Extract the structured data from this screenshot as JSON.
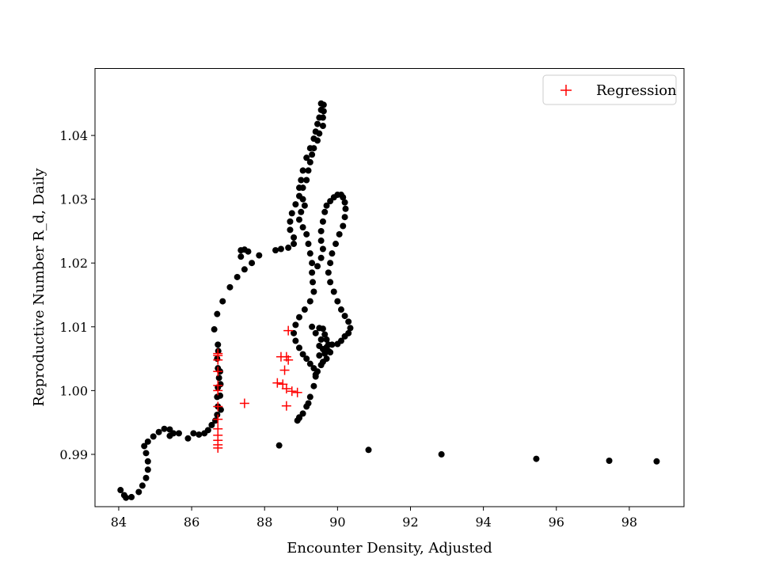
{
  "chart_data": {
    "type": "scatter",
    "xlabel": "Encounter Density, Adjusted",
    "ylabel": "Reproductive Number R_d, Daily",
    "xlim": [
      83.35,
      99.5
    ],
    "ylim": [
      0.9818,
      1.0505
    ],
    "xticks": [
      84,
      86,
      88,
      90,
      92,
      94,
      96,
      98
    ],
    "yticks": [
      0.99,
      1.0,
      1.01,
      1.02,
      1.03,
      1.04
    ],
    "ytick_labels": [
      "0.99",
      "1.00",
      "1.01",
      "1.02",
      "1.03",
      "1.04"
    ],
    "grid": false,
    "legend": {
      "position": "top-right",
      "entries": [
        "Regression"
      ]
    },
    "series": [
      {
        "marker": "dot",
        "color": "#000000",
        "points": [
          [
            98.75,
            0.9889
          ],
          [
            97.45,
            0.989
          ],
          [
            95.45,
            0.9893
          ],
          [
            92.85,
            0.99
          ],
          [
            90.85,
            0.9907
          ],
          [
            88.4,
            0.9914
          ],
          [
            84.05,
            0.9844
          ],
          [
            84.15,
            0.9836
          ],
          [
            84.2,
            0.9832
          ],
          [
            84.35,
            0.9833
          ],
          [
            84.55,
            0.9841
          ],
          [
            84.65,
            0.9851
          ],
          [
            84.75,
            0.9863
          ],
          [
            84.8,
            0.9876
          ],
          [
            84.8,
            0.9889
          ],
          [
            84.75,
            0.9902
          ],
          [
            84.7,
            0.9913
          ],
          [
            84.8,
            0.992
          ],
          [
            84.95,
            0.9928
          ],
          [
            85.1,
            0.9935
          ],
          [
            85.25,
            0.994
          ],
          [
            85.4,
            0.9939
          ],
          [
            85.5,
            0.9933
          ],
          [
            85.4,
            0.9929
          ],
          [
            85.65,
            0.9933
          ],
          [
            85.9,
            0.9925
          ],
          [
            86.05,
            0.9933
          ],
          [
            86.2,
            0.9931
          ],
          [
            86.35,
            0.9933
          ],
          [
            86.45,
            0.9938
          ],
          [
            86.55,
            0.9946
          ],
          [
            86.65,
            0.9953
          ],
          [
            86.7,
            0.9962
          ],
          [
            86.72,
            0.9975
          ],
          [
            86.7,
            0.999
          ],
          [
            86.72,
            1.0005
          ],
          [
            86.75,
            1.002
          ],
          [
            86.72,
            1.0035
          ],
          [
            86.7,
            1.005
          ],
          [
            86.73,
            1.0062
          ],
          [
            86.72,
            1.0072
          ],
          [
            86.8,
            0.997
          ],
          [
            86.78,
            0.9992
          ],
          [
            86.79,
            1.001
          ],
          [
            86.78,
            1.003
          ],
          [
            86.62,
            1.0096
          ],
          [
            86.7,
            1.012
          ],
          [
            86.85,
            1.014
          ],
          [
            87.05,
            1.0162
          ],
          [
            87.25,
            1.0178
          ],
          [
            87.45,
            1.019
          ],
          [
            87.65,
            1.02
          ],
          [
            87.85,
            1.0212
          ],
          [
            87.55,
            1.0218
          ],
          [
            87.45,
            1.0221
          ],
          [
            87.35,
            1.022
          ],
          [
            87.35,
            1.021
          ],
          [
            88.3,
            1.022
          ],
          [
            88.45,
            1.0222
          ],
          [
            88.65,
            1.0224
          ],
          [
            88.8,
            1.023
          ],
          [
            88.8,
            1.024
          ],
          [
            88.7,
            1.0252
          ],
          [
            88.7,
            1.0265
          ],
          [
            88.75,
            1.0278
          ],
          [
            88.85,
            1.0292
          ],
          [
            88.95,
            1.0305
          ],
          [
            89.05,
            1.0318
          ],
          [
            89.15,
            1.033
          ],
          [
            89.2,
            1.0345
          ],
          [
            89.25,
            1.0358
          ],
          [
            89.3,
            1.037
          ],
          [
            89.35,
            1.038
          ],
          [
            89.45,
            1.0392
          ],
          [
            89.5,
            1.0403
          ],
          [
            89.6,
            1.0415
          ],
          [
            89.6,
            1.0428
          ],
          [
            89.62,
            1.0438
          ],
          [
            89.62,
            1.0448
          ],
          [
            89.55,
            1.045
          ],
          [
            89.55,
            1.044
          ],
          [
            89.5,
            1.0428
          ],
          [
            89.45,
            1.0418
          ],
          [
            89.4,
            1.0406
          ],
          [
            89.35,
            1.0395
          ],
          [
            89.25,
            1.038
          ],
          [
            89.15,
            1.0365
          ],
          [
            89.05,
            1.0345
          ],
          [
            89.0,
            1.033
          ],
          [
            88.95,
            1.0318
          ],
          [
            89.05,
            1.03
          ],
          [
            89.1,
            1.029
          ],
          [
            89.0,
            1.028
          ],
          [
            88.95,
            1.0268
          ],
          [
            89.05,
            1.0256
          ],
          [
            89.15,
            1.0245
          ],
          [
            89.2,
            1.023
          ],
          [
            89.25,
            1.0215
          ],
          [
            89.3,
            1.02
          ],
          [
            89.3,
            1.0185
          ],
          [
            89.32,
            1.017
          ],
          [
            89.35,
            1.0155
          ],
          [
            89.25,
            1.014
          ],
          [
            89.1,
            1.0127
          ],
          [
            88.95,
            1.0115
          ],
          [
            88.85,
            1.0103
          ],
          [
            88.8,
            1.009
          ],
          [
            88.85,
            1.0078
          ],
          [
            88.95,
            1.0067
          ],
          [
            89.05,
            1.0057
          ],
          [
            89.15,
            1.005
          ],
          [
            89.25,
            1.0042
          ],
          [
            89.35,
            1.0035
          ],
          [
            89.4,
            1.0022
          ],
          [
            89.35,
            1.0007
          ],
          [
            89.25,
            0.999
          ],
          [
            89.15,
            0.9975
          ],
          [
            89.05,
            0.9964
          ],
          [
            88.95,
            0.9957
          ],
          [
            88.9,
            0.9953
          ],
          [
            88.95,
            0.9958
          ],
          [
            89.2,
            0.998
          ],
          [
            89.3,
            1.01
          ],
          [
            89.4,
            1.009
          ],
          [
            89.5,
            1.0098
          ],
          [
            89.6,
            1.0097
          ],
          [
            89.65,
            1.0088
          ],
          [
            89.7,
            1.008
          ],
          [
            89.75,
            1.0072
          ],
          [
            89.8,
            1.006
          ],
          [
            89.7,
            1.005
          ],
          [
            89.6,
            1.0045
          ],
          [
            89.5,
            1.0055
          ],
          [
            89.5,
            1.007
          ],
          [
            89.55,
            1.008
          ],
          [
            89.6,
            1.0065
          ],
          [
            89.65,
            1.0058
          ],
          [
            89.7,
            1.0068
          ],
          [
            89.75,
            1.0062
          ],
          [
            89.55,
            1.004
          ],
          [
            89.45,
            1.003
          ],
          [
            89.4,
            1.0025
          ],
          [
            89.85,
            1.0072
          ],
          [
            90.0,
            1.0073
          ],
          [
            90.1,
            1.0078
          ],
          [
            90.2,
            1.0085
          ],
          [
            90.3,
            1.009
          ],
          [
            90.35,
            1.0098
          ],
          [
            90.3,
            1.0108
          ],
          [
            90.2,
            1.0117
          ],
          [
            90.1,
            1.0127
          ],
          [
            90.0,
            1.014
          ],
          [
            89.9,
            1.0155
          ],
          [
            89.8,
            1.017
          ],
          [
            89.75,
            1.0185
          ],
          [
            89.8,
            1.02
          ],
          [
            89.85,
            1.0215
          ],
          [
            89.95,
            1.023
          ],
          [
            90.05,
            1.0245
          ],
          [
            90.15,
            1.0258
          ],
          [
            90.2,
            1.0272
          ],
          [
            90.22,
            1.0285
          ],
          [
            90.2,
            1.0295
          ],
          [
            90.15,
            1.0303
          ],
          [
            90.1,
            1.0307
          ],
          [
            90.0,
            1.0307
          ],
          [
            89.9,
            1.0303
          ],
          [
            89.8,
            1.0297
          ],
          [
            89.7,
            1.029
          ],
          [
            89.65,
            1.028
          ],
          [
            89.6,
            1.0265
          ],
          [
            89.55,
            1.025
          ],
          [
            89.55,
            1.0235
          ],
          [
            89.6,
            1.0222
          ],
          [
            89.55,
            1.0208
          ],
          [
            89.45,
            1.0195
          ]
        ]
      },
      {
        "name": "Regression",
        "marker": "plus",
        "color": "#ff0000",
        "points": [
          [
            86.72,
            0.991
          ],
          [
            86.72,
            0.9915
          ],
          [
            86.72,
            0.9922
          ],
          [
            86.72,
            0.993
          ],
          [
            86.72,
            0.994
          ],
          [
            86.72,
            0.9955
          ],
          [
            86.72,
            0.9975
          ],
          [
            86.72,
            1.0
          ],
          [
            86.72,
            1.0008
          ],
          [
            86.72,
            1.003
          ],
          [
            86.72,
            1.0048
          ],
          [
            86.72,
            1.0055
          ],
          [
            86.72,
            1.0058
          ],
          [
            87.45,
            0.998
          ],
          [
            88.35,
            1.0012
          ],
          [
            88.5,
            1.001
          ],
          [
            88.45,
            1.0053
          ],
          [
            88.6,
            1.0053
          ],
          [
            88.65,
            1.0048
          ],
          [
            88.55,
            1.0032
          ],
          [
            88.6,
            1.0003
          ],
          [
            88.75,
            0.9999
          ],
          [
            88.9,
            0.9997
          ],
          [
            88.6,
            0.9976
          ],
          [
            88.65,
            1.0094
          ]
        ]
      }
    ]
  }
}
